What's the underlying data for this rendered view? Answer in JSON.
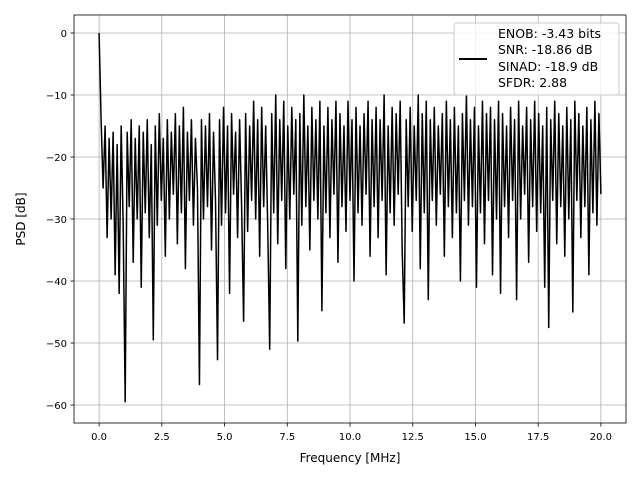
{
  "chart_data": {
    "type": "line",
    "title": "",
    "xlabel": "Frequency [MHz]",
    "ylabel": "PSD [dB]",
    "xlim": [
      -1.0,
      21.0
    ],
    "ylim": [
      -62.9,
      2.9
    ],
    "grid": true,
    "x_ticks": [
      0,
      2.5,
      5,
      7.5,
      10,
      12.5,
      15,
      17.5,
      20
    ],
    "x_tick_labels": [
      "0.0",
      "2.5",
      "5.0",
      "7.5",
      "10.0",
      "12.5",
      "15.0",
      "17.5",
      "20.0"
    ],
    "y_ticks": [
      0,
      -10,
      -20,
      -30,
      -40,
      -50,
      -60
    ],
    "y_tick_labels": [
      "0",
      "−10",
      "−20",
      "−30",
      "−40",
      "−50",
      "−60"
    ],
    "legend": {
      "placement": "top-right",
      "entries": [
        "ENOB: -3.43 bits",
        "SNR: -18.86 dB",
        "SINAD: -18.9 dB",
        "SFDR: 2.88"
      ]
    },
    "series": [
      {
        "name": "PSD",
        "color": "#000000",
        "x_start": 0,
        "x_step": 0.08,
        "values": [
          0,
          -14,
          -25,
          -15,
          -33,
          -17,
          -30,
          -16,
          -39,
          -18,
          -42,
          -15,
          -31,
          -59.5,
          -16,
          -28,
          -14,
          -37,
          -17,
          -30,
          -15,
          -41,
          -16,
          -29,
          -14,
          -33,
          -18,
          -49.5,
          -15,
          -31,
          -13,
          -27,
          -17,
          -36,
          -14,
          -30,
          -16,
          -26,
          -13,
          -34,
          -15,
          -29,
          -12,
          -38,
          -16,
          -27,
          -14,
          -31,
          -17,
          -25,
          -56.7,
          -14,
          -30,
          -15,
          -28,
          -13,
          -35,
          -16,
          -27,
          -52.7,
          -14,
          -31,
          -12,
          -29,
          -15,
          -42,
          -13,
          -26,
          -16,
          -33,
          -14,
          -28,
          -46.5,
          -13,
          -32,
          -15,
          -27,
          -11,
          -30,
          -14,
          -36,
          -12,
          -28,
          -15,
          -31,
          -51,
          -13,
          -29,
          -10,
          -34,
          -14,
          -27,
          -11,
          -38,
          -15,
          -30,
          -12,
          -26,
          -14,
          -49.7,
          -13,
          -31,
          -10,
          -28,
          -15,
          -35,
          -12,
          -27,
          -14,
          -30,
          -11,
          -44.8,
          -15,
          -29,
          -12,
          -33,
          -14,
          -26,
          -11,
          -37,
          -13,
          -28,
          -15,
          -32,
          -11,
          -27,
          -14,
          -40,
          -12,
          -29,
          -15,
          -31,
          -13,
          -26,
          -11,
          -36,
          -14,
          -28,
          -12,
          -33,
          -14,
          -27,
          -10,
          -39,
          -15,
          -29,
          -12,
          -31,
          -13,
          -26,
          -11,
          -35,
          -46.8,
          -14,
          -28,
          -12,
          -32,
          -15,
          -27,
          -10,
          -38,
          -13,
          -29,
          -11,
          -43,
          -14,
          -27,
          -12,
          -31,
          -15,
          -26,
          -13,
          -36,
          -11,
          -28,
          -14,
          -33,
          -12,
          -29,
          -15,
          -40,
          -13,
          -27,
          -10,
          -31,
          -14,
          -28,
          -12,
          -41,
          -15,
          -29,
          -11,
          -34,
          -13,
          -27,
          -12,
          -39,
          -14,
          -30,
          -11,
          -42,
          -13,
          -28,
          -15,
          -33,
          -12,
          -27,
          -14,
          -43,
          -11,
          -30,
          -15,
          -26,
          -12,
          -37,
          -14,
          -28,
          -11,
          -32,
          -13,
          -29,
          -15,
          -41,
          -12,
          -47.5,
          -14,
          -27,
          -11,
          -34,
          -13,
          -28,
          -15,
          -36,
          -12,
          -30,
          -14,
          -45,
          -11,
          -27,
          -13,
          -33,
          -15,
          -28,
          -12,
          -39,
          -14,
          -29,
          -11,
          -31,
          -13,
          -26
        ]
      }
    ]
  }
}
